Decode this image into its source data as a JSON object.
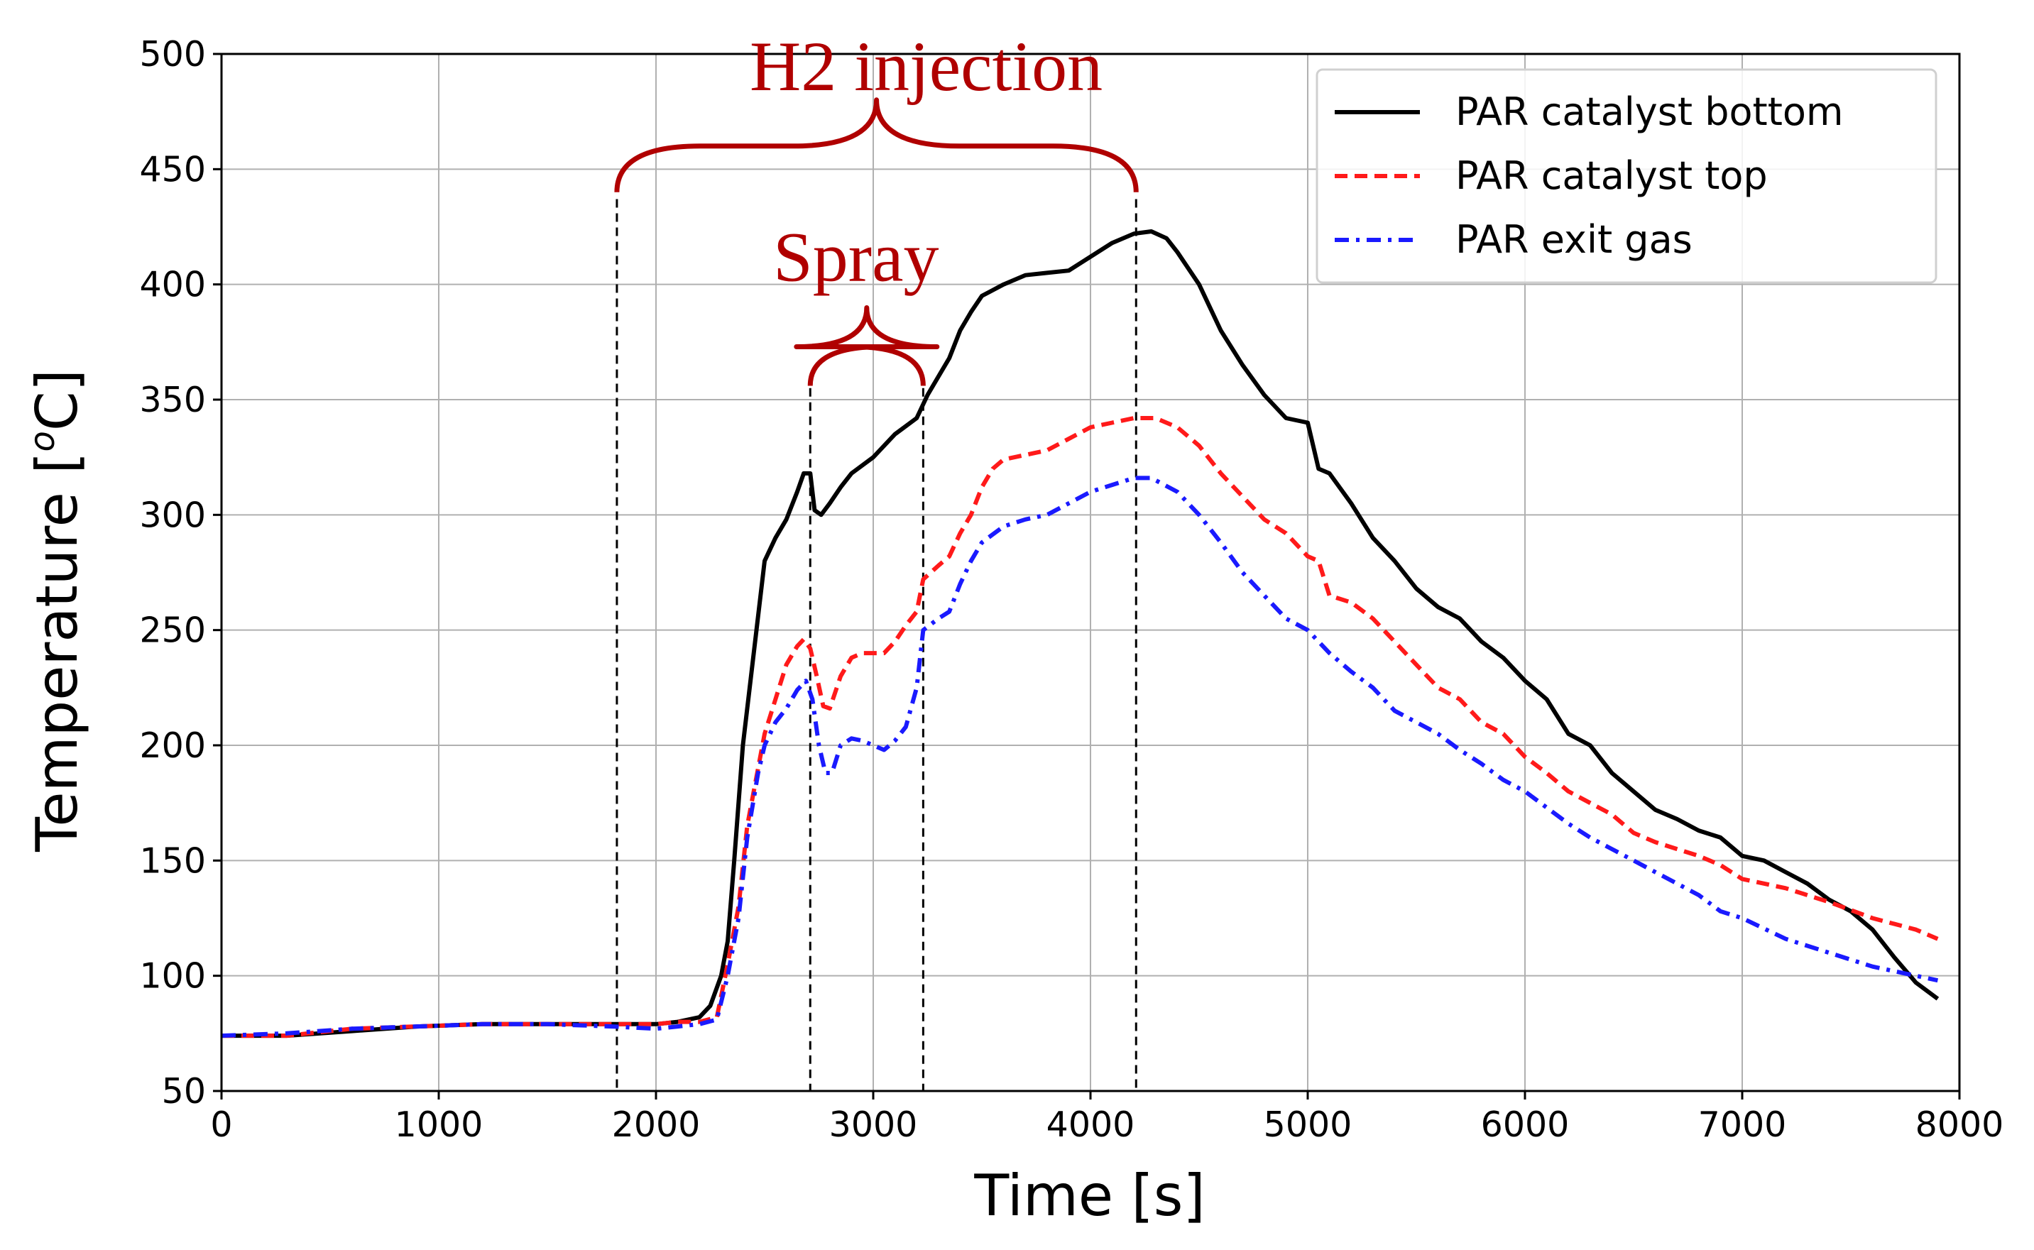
{
  "chart_data": {
    "type": "line",
    "title": "",
    "xlabel": "Time [s]",
    "ylabel": "Temperature [",
    "ylabel_sup": "o",
    "ylabel_unit": "C]",
    "xlim": [
      0,
      8000
    ],
    "ylim": [
      50,
      500
    ],
    "xticks": [
      0,
      1000,
      2000,
      3000,
      4000,
      5000,
      6000,
      7000,
      8000
    ],
    "yticks": [
      50,
      100,
      150,
      200,
      250,
      300,
      350,
      400,
      450,
      500
    ],
    "xtick_labels": [
      "0",
      "1000",
      "2000",
      "3000",
      "4000",
      "5000",
      "6000",
      "7000",
      "8000"
    ],
    "ytick_labels": [
      "50",
      "100",
      "150",
      "200",
      "250",
      "300",
      "350",
      "400",
      "450",
      "500"
    ],
    "grid": true,
    "legend_position": "top-right",
    "series": [
      {
        "name": "PAR catalyst bottom",
        "color": "#000000",
        "style": "solid",
        "points": [
          [
            0,
            74
          ],
          [
            300,
            74
          ],
          [
            600,
            76
          ],
          [
            900,
            78
          ],
          [
            1200,
            79
          ],
          [
            1500,
            79
          ],
          [
            1800,
            79
          ],
          [
            2000,
            79
          ],
          [
            2100,
            80
          ],
          [
            2200,
            82
          ],
          [
            2250,
            87
          ],
          [
            2300,
            100
          ],
          [
            2330,
            115
          ],
          [
            2360,
            150
          ],
          [
            2400,
            200
          ],
          [
            2450,
            240
          ],
          [
            2500,
            280
          ],
          [
            2550,
            290
          ],
          [
            2600,
            298
          ],
          [
            2650,
            310
          ],
          [
            2680,
            318
          ],
          [
            2710,
            318
          ],
          [
            2730,
            302
          ],
          [
            2760,
            300
          ],
          [
            2800,
            305
          ],
          [
            2850,
            312
          ],
          [
            2900,
            318
          ],
          [
            3000,
            325
          ],
          [
            3100,
            335
          ],
          [
            3200,
            342
          ],
          [
            3250,
            352
          ],
          [
            3300,
            360
          ],
          [
            3350,
            368
          ],
          [
            3400,
            380
          ],
          [
            3450,
            388
          ],
          [
            3500,
            395
          ],
          [
            3600,
            400
          ],
          [
            3700,
            404
          ],
          [
            3800,
            405
          ],
          [
            3900,
            406
          ],
          [
            4000,
            412
          ],
          [
            4100,
            418
          ],
          [
            4200,
            422
          ],
          [
            4280,
            423
          ],
          [
            4350,
            420
          ],
          [
            4400,
            414
          ],
          [
            4500,
            400
          ],
          [
            4600,
            380
          ],
          [
            4700,
            365
          ],
          [
            4800,
            352
          ],
          [
            4900,
            342
          ],
          [
            5000,
            340
          ],
          [
            5050,
            320
          ],
          [
            5100,
            318
          ],
          [
            5200,
            305
          ],
          [
            5300,
            290
          ],
          [
            5400,
            280
          ],
          [
            5500,
            268
          ],
          [
            5600,
            260
          ],
          [
            5700,
            255
          ],
          [
            5800,
            245
          ],
          [
            5900,
            238
          ],
          [
            6000,
            228
          ],
          [
            6100,
            220
          ],
          [
            6200,
            205
          ],
          [
            6300,
            200
          ],
          [
            6400,
            188
          ],
          [
            6500,
            180
          ],
          [
            6600,
            172
          ],
          [
            6700,
            168
          ],
          [
            6800,
            163
          ],
          [
            6900,
            160
          ],
          [
            7000,
            152
          ],
          [
            7100,
            150
          ],
          [
            7200,
            145
          ],
          [
            7300,
            140
          ],
          [
            7400,
            133
          ],
          [
            7500,
            128
          ],
          [
            7600,
            120
          ],
          [
            7700,
            108
          ],
          [
            7800,
            97
          ],
          [
            7900,
            90
          ]
        ]
      },
      {
        "name": "PAR catalyst top",
        "color": "#ff1a1a",
        "style": "dashed",
        "points": [
          [
            0,
            74
          ],
          [
            300,
            74
          ],
          [
            600,
            77
          ],
          [
            900,
            78
          ],
          [
            1200,
            79
          ],
          [
            1500,
            79
          ],
          [
            1800,
            79
          ],
          [
            2000,
            79
          ],
          [
            2100,
            80
          ],
          [
            2200,
            80
          ],
          [
            2280,
            82
          ],
          [
            2330,
            105
          ],
          [
            2380,
            130
          ],
          [
            2420,
            165
          ],
          [
            2470,
            190
          ],
          [
            2500,
            205
          ],
          [
            2550,
            220
          ],
          [
            2600,
            235
          ],
          [
            2650,
            243
          ],
          [
            2680,
            246
          ],
          [
            2710,
            242
          ],
          [
            2740,
            230
          ],
          [
            2770,
            217
          ],
          [
            2800,
            216
          ],
          [
            2850,
            230
          ],
          [
            2900,
            238
          ],
          [
            2950,
            240
          ],
          [
            3000,
            240
          ],
          [
            3050,
            240
          ],
          [
            3100,
            245
          ],
          [
            3150,
            252
          ],
          [
            3200,
            258
          ],
          [
            3230,
            272
          ],
          [
            3300,
            278
          ],
          [
            3350,
            282
          ],
          [
            3400,
            292
          ],
          [
            3450,
            300
          ],
          [
            3500,
            312
          ],
          [
            3550,
            320
          ],
          [
            3600,
            324
          ],
          [
            3700,
            326
          ],
          [
            3800,
            328
          ],
          [
            3900,
            333
          ],
          [
            4000,
            338
          ],
          [
            4100,
            340
          ],
          [
            4200,
            342
          ],
          [
            4300,
            342
          ],
          [
            4400,
            338
          ],
          [
            4500,
            330
          ],
          [
            4600,
            318
          ],
          [
            4700,
            308
          ],
          [
            4800,
            298
          ],
          [
            4900,
            292
          ],
          [
            5000,
            282
          ],
          [
            5050,
            280
          ],
          [
            5100,
            265
          ],
          [
            5200,
            262
          ],
          [
            5300,
            255
          ],
          [
            5400,
            245
          ],
          [
            5500,
            235
          ],
          [
            5600,
            225
          ],
          [
            5700,
            220
          ],
          [
            5800,
            210
          ],
          [
            5900,
            205
          ],
          [
            6000,
            195
          ],
          [
            6100,
            188
          ],
          [
            6200,
            180
          ],
          [
            6300,
            175
          ],
          [
            6400,
            170
          ],
          [
            6500,
            162
          ],
          [
            6600,
            158
          ],
          [
            6700,
            155
          ],
          [
            6800,
            152
          ],
          [
            6900,
            148
          ],
          [
            7000,
            142
          ],
          [
            7200,
            138
          ],
          [
            7400,
            132
          ],
          [
            7600,
            125
          ],
          [
            7800,
            120
          ],
          [
            7900,
            116
          ]
        ]
      },
      {
        "name": "PAR exit gas",
        "color": "#1a1aff",
        "style": "dashdot",
        "points": [
          [
            0,
            74
          ],
          [
            300,
            75
          ],
          [
            600,
            77
          ],
          [
            900,
            78
          ],
          [
            1200,
            79
          ],
          [
            1500,
            79
          ],
          [
            1800,
            78
          ],
          [
            2000,
            77
          ],
          [
            2100,
            78
          ],
          [
            2200,
            79
          ],
          [
            2280,
            81
          ],
          [
            2330,
            100
          ],
          [
            2380,
            125
          ],
          [
            2420,
            160
          ],
          [
            2470,
            188
          ],
          [
            2500,
            200
          ],
          [
            2550,
            210
          ],
          [
            2600,
            216
          ],
          [
            2650,
            224
          ],
          [
            2690,
            228
          ],
          [
            2720,
            220
          ],
          [
            2750,
            200
          ],
          [
            2780,
            188
          ],
          [
            2810,
            188
          ],
          [
            2850,
            200
          ],
          [
            2900,
            203
          ],
          [
            2950,
            202
          ],
          [
            3000,
            200
          ],
          [
            3050,
            198
          ],
          [
            3100,
            202
          ],
          [
            3150,
            208
          ],
          [
            3200,
            225
          ],
          [
            3230,
            250
          ],
          [
            3300,
            255
          ],
          [
            3350,
            258
          ],
          [
            3400,
            270
          ],
          [
            3450,
            280
          ],
          [
            3500,
            288
          ],
          [
            3600,
            295
          ],
          [
            3700,
            298
          ],
          [
            3800,
            300
          ],
          [
            3900,
            305
          ],
          [
            4000,
            310
          ],
          [
            4100,
            313
          ],
          [
            4200,
            316
          ],
          [
            4280,
            316
          ],
          [
            4400,
            310
          ],
          [
            4500,
            300
          ],
          [
            4600,
            288
          ],
          [
            4700,
            275
          ],
          [
            4800,
            265
          ],
          [
            4900,
            255
          ],
          [
            5000,
            250
          ],
          [
            5100,
            240
          ],
          [
            5200,
            232
          ],
          [
            5300,
            225
          ],
          [
            5400,
            215
          ],
          [
            5500,
            210
          ],
          [
            5600,
            205
          ],
          [
            5700,
            198
          ],
          [
            5800,
            192
          ],
          [
            5900,
            185
          ],
          [
            6000,
            180
          ],
          [
            6100,
            173
          ],
          [
            6200,
            166
          ],
          [
            6300,
            160
          ],
          [
            6400,
            155
          ],
          [
            6500,
            150
          ],
          [
            6600,
            145
          ],
          [
            6700,
            140
          ],
          [
            6800,
            135
          ],
          [
            6900,
            128
          ],
          [
            7000,
            125
          ],
          [
            7200,
            116
          ],
          [
            7400,
            110
          ],
          [
            7600,
            104
          ],
          [
            7800,
            100
          ],
          [
            7900,
            98
          ]
        ]
      }
    ],
    "markers": {
      "vlines": [
        {
          "x": 1820,
          "y_top": 437
        },
        {
          "x": 2710,
          "y_top": 355
        },
        {
          "x": 3230,
          "y_top": 355
        },
        {
          "x": 4210,
          "y_top": 437
        }
      ]
    },
    "annotations": [
      {
        "id": "h2",
        "text": "H2 injection",
        "x_start": 1820,
        "x_end": 4210,
        "y": 440,
        "color": "#b00000"
      },
      {
        "id": "spray",
        "text": "Spray",
        "x_start": 2710,
        "x_end": 3230,
        "y": 356,
        "color": "#b00000"
      }
    ]
  }
}
